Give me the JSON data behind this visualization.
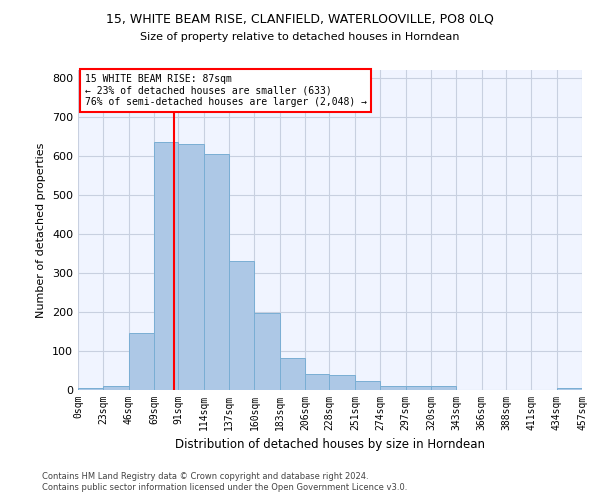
{
  "title": "15, WHITE BEAM RISE, CLANFIELD, WATERLOOVILLE, PO8 0LQ",
  "subtitle": "Size of property relative to detached houses in Horndean",
  "xlabel": "Distribution of detached houses by size in Horndean",
  "ylabel": "Number of detached properties",
  "bar_color": "#adc8e6",
  "bar_edgecolor": "#7aaed4",
  "bin_edges": [
    0,
    23,
    46,
    69,
    91,
    114,
    137,
    160,
    183,
    206,
    228,
    251,
    274,
    297,
    320,
    343,
    366,
    388,
    411,
    434,
    457
  ],
  "bar_heights": [
    5,
    10,
    145,
    635,
    630,
    605,
    330,
    197,
    83,
    40,
    39,
    22,
    11,
    10,
    10,
    0,
    0,
    0,
    0,
    5
  ],
  "tick_labels": [
    "0sqm",
    "23sqm",
    "46sqm",
    "69sqm",
    "91sqm",
    "114sqm",
    "137sqm",
    "160sqm",
    "183sqm",
    "206sqm",
    "228sqm",
    "251sqm",
    "274sqm",
    "297sqm",
    "320sqm",
    "343sqm",
    "366sqm",
    "388sqm",
    "411sqm",
    "434sqm",
    "457sqm"
  ],
  "property_size": 87,
  "annotation_line1": "15 WHITE BEAM RISE: 87sqm",
  "annotation_line2": "← 23% of detached houses are smaller (633)",
  "annotation_line3": "76% of semi-detached houses are larger (2,048) →",
  "annotation_box_color": "white",
  "annotation_box_edgecolor": "red",
  "vline_color": "red",
  "ylim": [
    0,
    820
  ],
  "yticks": [
    0,
    100,
    200,
    300,
    400,
    500,
    600,
    700,
    800
  ],
  "footer1": "Contains HM Land Registry data © Crown copyright and database right 2024.",
  "footer2": "Contains public sector information licensed under the Open Government Licence v3.0.",
  "bg_color": "#f0f4ff",
  "grid_color": "#c8d0e0"
}
